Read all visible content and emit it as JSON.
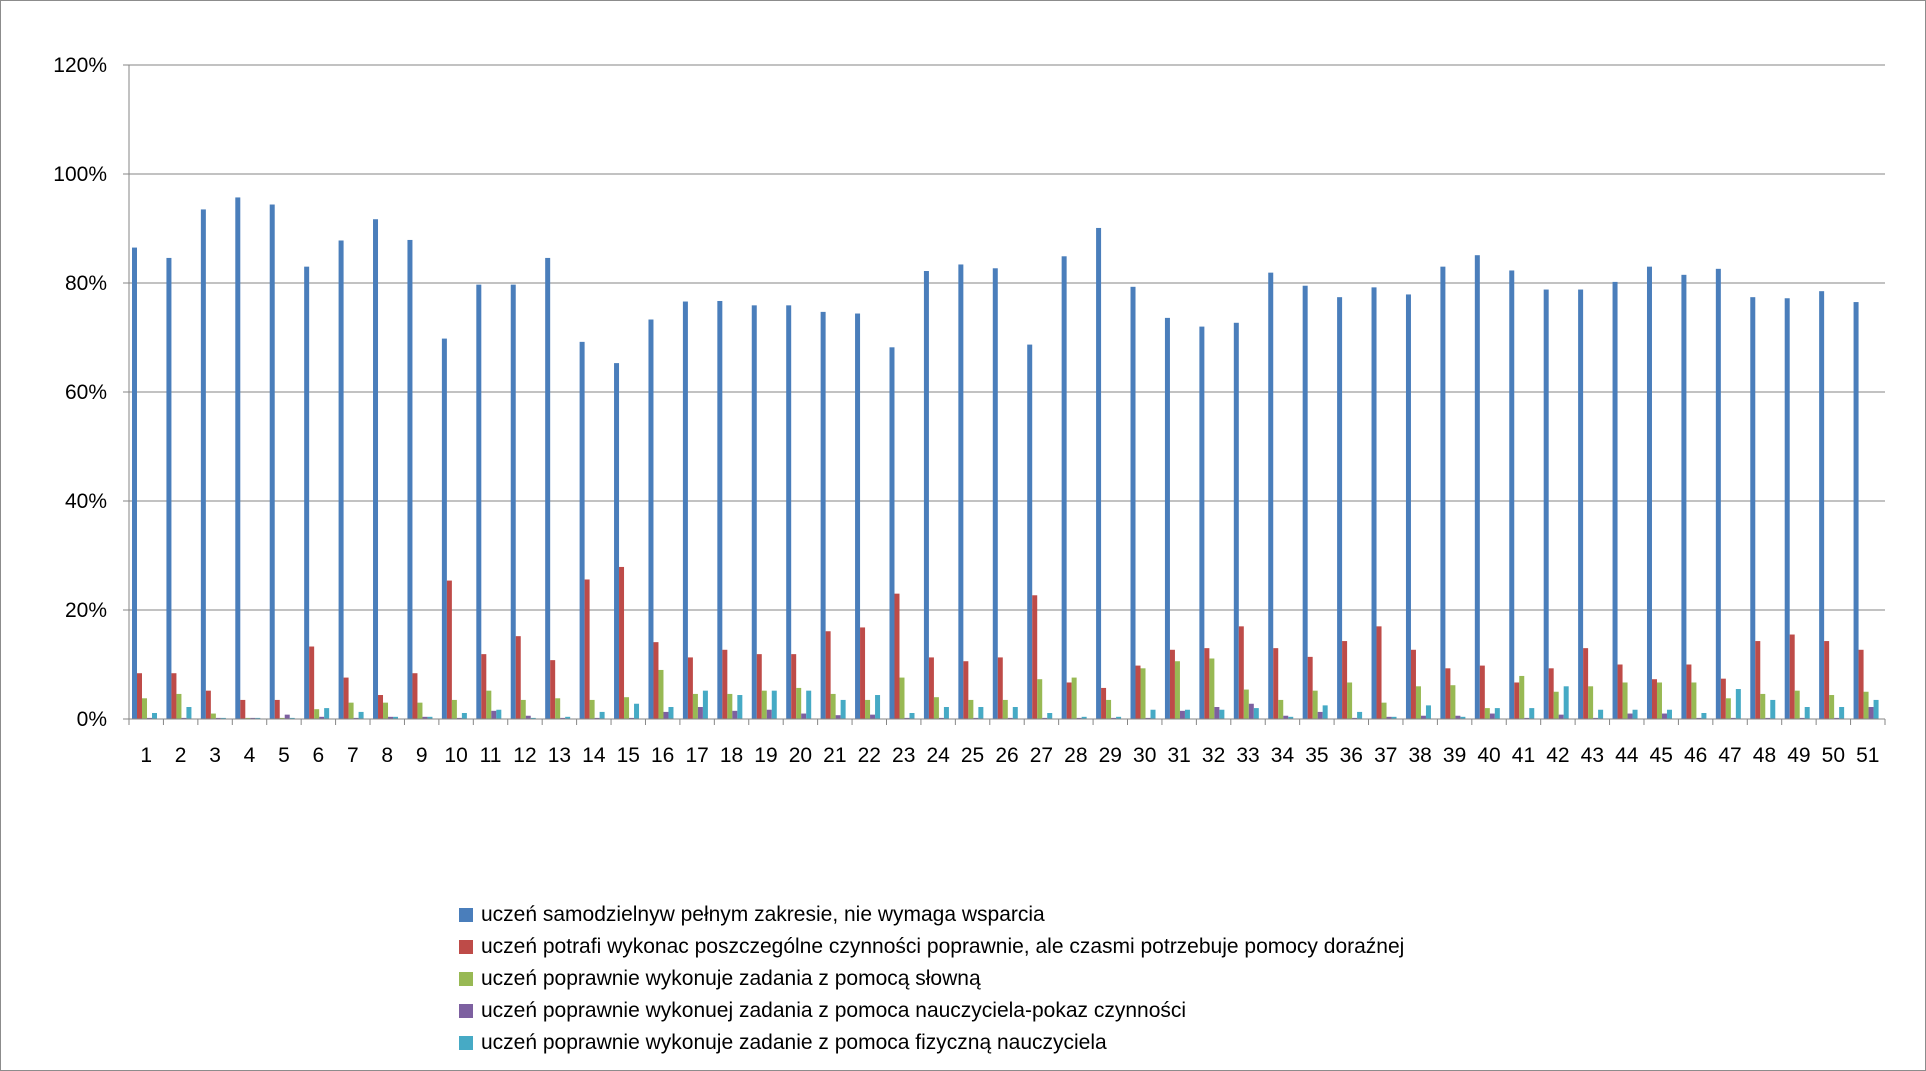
{
  "chart_data": {
    "type": "bar",
    "title": "",
    "xlabel": "",
    "ylabel": "",
    "ylim": [
      0,
      1.2
    ],
    "yticks": [
      "0%",
      "20%",
      "40%",
      "60%",
      "80%",
      "100%",
      "120%"
    ],
    "grid": true,
    "legend_position": "bottom",
    "categories": [
      "1",
      "2",
      "3",
      "4",
      "5",
      "6",
      "7",
      "8",
      "9",
      "10",
      "11",
      "12",
      "13",
      "14",
      "15",
      "16",
      "17",
      "18",
      "19",
      "20",
      "21",
      "22",
      "23",
      "24",
      "25",
      "26",
      "27",
      "28",
      "29",
      "30",
      "31",
      "32",
      "33",
      "34",
      "35",
      "36",
      "37",
      "38",
      "39",
      "40",
      "41",
      "42",
      "43",
      "44",
      "45",
      "46",
      "47",
      "48",
      "49",
      "50",
      "51"
    ],
    "series": [
      {
        "name": "uczeń samodzielnyw pełnym zakresie, nie wymaga wsparcia",
        "color": "#4a7ebb",
        "values": [
          0.865,
          0.846,
          0.935,
          0.957,
          0.944,
          0.83,
          0.878,
          0.917,
          0.879,
          0.698,
          0.797,
          0.797,
          0.846,
          0.692,
          0.653,
          0.733,
          0.766,
          0.767,
          0.759,
          0.759,
          0.747,
          0.744,
          0.682,
          0.822,
          0.834,
          0.827,
          0.687,
          0.849,
          0.901,
          0.793,
          0.736,
          0.72,
          0.727,
          0.819,
          0.795,
          0.774,
          0.792,
          0.779,
          0.83,
          0.851,
          0.823,
          0.788,
          0.788,
          0.802,
          0.83,
          0.815,
          0.826,
          0.774,
          0.772,
          0.785,
          0.765
        ]
      },
      {
        "name": "uczeń potrafi wykonac poszczególne czynności poprawnie, ale czasmi potrzebuje pomocy doraźnej",
        "color": "#be4b48",
        "values": [
          0.084,
          0.084,
          0.052,
          0.035,
          0.035,
          0.133,
          0.076,
          0.044,
          0.084,
          0.254,
          0.119,
          0.152,
          0.108,
          0.256,
          0.279,
          0.141,
          0.113,
          0.127,
          0.119,
          0.119,
          0.161,
          0.168,
          0.23,
          0.113,
          0.106,
          0.113,
          0.227,
          0.067,
          0.057,
          0.098,
          0.127,
          0.13,
          0.17,
          0.13,
          0.114,
          0.143,
          0.17,
          0.127,
          0.093,
          0.098,
          0.067,
          0.093,
          0.13,
          0.1,
          0.073,
          0.1,
          0.074,
          0.143,
          0.155,
          0.143,
          0.127
        ]
      },
      {
        "name": "uczeń poprawnie wykonuje zadania z pomocą słowną",
        "color": "#98b954",
        "values": [
          0.038,
          0.046,
          0.01,
          0.002,
          0.002,
          0.018,
          0.03,
          0.03,
          0.03,
          0.035,
          0.052,
          0.035,
          0.038,
          0.035,
          0.04,
          0.09,
          0.046,
          0.046,
          0.052,
          0.057,
          0.046,
          0.035,
          0.076,
          0.04,
          0.035,
          0.035,
          0.073,
          0.076,
          0.035,
          0.093,
          0.106,
          0.111,
          0.054,
          0.035,
          0.052,
          0.067,
          0.03,
          0.06,
          0.062,
          0.02,
          0.079,
          0.05,
          0.06,
          0.067,
          0.067,
          0.067,
          0.038,
          0.046,
          0.052,
          0.044,
          0.05
        ]
      },
      {
        "name": "uczeń poprawnie wykonuej zadania z pomoca nauczyciela-pokaz czynności",
        "color": "#7d60a0",
        "values": [
          0.002,
          0.002,
          0.002,
          0.002,
          0.008,
          0.004,
          0.002,
          0.004,
          0.004,
          0.002,
          0.015,
          0.006,
          0.002,
          0.002,
          0.002,
          0.013,
          0.022,
          0.015,
          0.017,
          0.01,
          0.007,
          0.008,
          0.002,
          0.002,
          0.002,
          0.002,
          0.002,
          0.002,
          0.002,
          0.002,
          0.015,
          0.022,
          0.028,
          0.006,
          0.013,
          0.002,
          0.004,
          0.006,
          0.006,
          0.01,
          0.002,
          0.008,
          0.002,
          0.01,
          0.01,
          0.002,
          0.002,
          0.002,
          0.002,
          0.002,
          0.022
        ]
      },
      {
        "name": "uczeń poprawnie wykonuje zadanie z pomoca fizyczną nauczyciela",
        "color": "#46aac5",
        "values": [
          0.011,
          0.022,
          0.002,
          0.002,
          0.002,
          0.02,
          0.013,
          0.004,
          0.004,
          0.011,
          0.017,
          0.002,
          0.004,
          0.013,
          0.028,
          0.022,
          0.052,
          0.044,
          0.052,
          0.052,
          0.035,
          0.044,
          0.011,
          0.022,
          0.022,
          0.022,
          0.011,
          0.004,
          0.004,
          0.017,
          0.017,
          0.017,
          0.02,
          0.004,
          0.025,
          0.013,
          0.004,
          0.025,
          0.004,
          0.02,
          0.02,
          0.06,
          0.017,
          0.017,
          0.017,
          0.011,
          0.055,
          0.035,
          0.022,
          0.022,
          0.035
        ]
      }
    ]
  }
}
